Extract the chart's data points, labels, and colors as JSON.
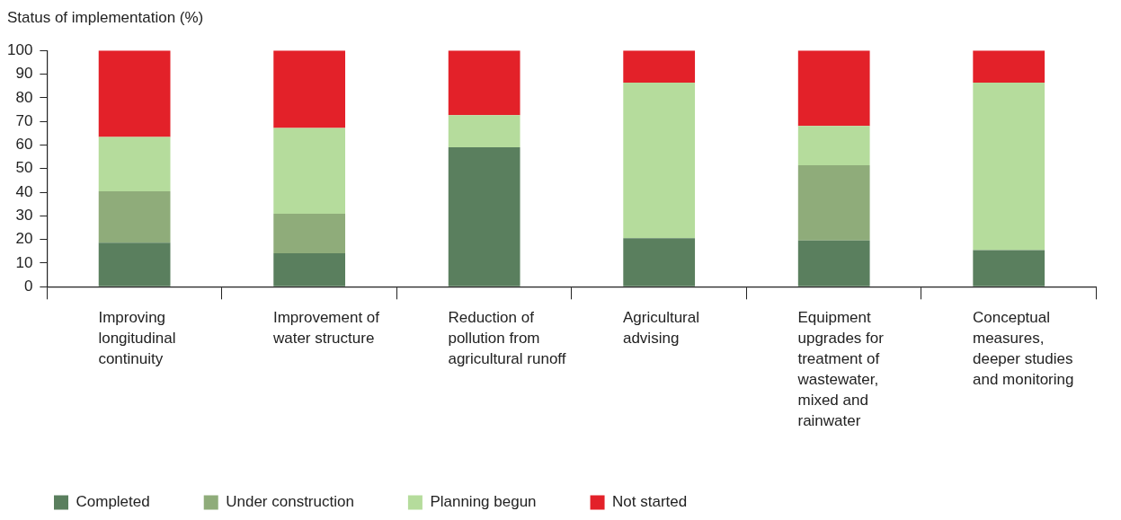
{
  "chart_data": {
    "type": "bar",
    "stacked": true,
    "ylabel": "Status of implementation (%)",
    "categories": [
      "Improving longitudinal continuity",
      "Improvement of water structure",
      "Reduction of pollution from agricultural runoff",
      "Agricultural advising",
      "Equipment upgrades for treatment of wastewater, mixed and rainwater",
      "Conceptual measures, deeper studies and monitoring"
    ],
    "series": [
      {
        "name": "Completed",
        "color": "#5a7f5e",
        "values": [
          18.6,
          14.2,
          59,
          20.5,
          19.6,
          15.5
        ]
      },
      {
        "name": "Under construction",
        "color": "#8fac7a",
        "values": [
          21.8,
          16.7,
          0,
          0,
          31.8,
          0
        ]
      },
      {
        "name": "Planning begun",
        "color": "#b5dc9c",
        "values": [
          23,
          36.3,
          13.6,
          65.9,
          16.7,
          70.9
        ]
      },
      {
        "name": "Not started",
        "color": "#e32129",
        "values": [
          36.6,
          32.8,
          27.4,
          13.6,
          31.9,
          13.6
        ]
      }
    ],
    "ylim": [
      0,
      100
    ],
    "yticks": [
      0,
      10,
      20,
      30,
      40,
      50,
      60,
      70,
      80,
      90,
      100
    ],
    "grid": false,
    "legend": "bottom"
  }
}
